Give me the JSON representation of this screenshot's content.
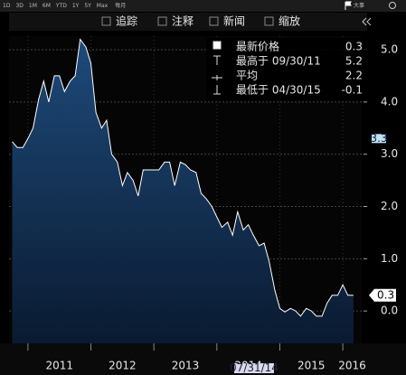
{
  "toolbar": {
    "ranges": [
      "1D",
      "3D",
      "1M",
      "6M",
      "YTD",
      "1Y",
      "5Y",
      "Max"
    ],
    "period": "每月",
    "events": "大事",
    "buttons": [
      "追踪",
      "注释",
      "新闻",
      "缩放"
    ]
  },
  "cursor_date": "07/31/14",
  "chart_data": {
    "type": "area",
    "x": [
      2010.75,
      2010.83,
      2010.92,
      2011.0,
      2011.08,
      2011.17,
      2011.25,
      2011.33,
      2011.42,
      2011.5,
      2011.58,
      2011.67,
      2011.75,
      2011.83,
      2011.92,
      2012.0,
      2012.08,
      2012.17,
      2012.25,
      2012.33,
      2012.42,
      2012.5,
      2012.58,
      2012.67,
      2012.75,
      2012.83,
      2012.92,
      2013.0,
      2013.08,
      2013.17,
      2013.25,
      2013.33,
      2013.42,
      2013.5,
      2013.58,
      2013.67,
      2013.75,
      2013.83,
      2013.92,
      2014.0,
      2014.08,
      2014.17,
      2014.25,
      2014.33,
      2014.42,
      2014.5,
      2014.58,
      2014.67,
      2014.75,
      2014.83,
      2014.92,
      2015.0,
      2015.08,
      2015.17,
      2015.25,
      2015.33,
      2015.42,
      2015.5,
      2015.58,
      2015.67,
      2015.75,
      2015.83,
      2015.92,
      2016.0,
      2016.08,
      2016.17
    ],
    "values": [
      3.24,
      3.13,
      3.13,
      3.3,
      3.5,
      4.05,
      4.4,
      4.0,
      4.5,
      4.5,
      4.2,
      4.4,
      4.5,
      5.2,
      5.05,
      4.74,
      3.8,
      3.5,
      3.65,
      3.0,
      2.85,
      2.4,
      2.65,
      2.5,
      2.2,
      2.7,
      2.7,
      2.7,
      2.7,
      2.85,
      2.85,
      2.4,
      2.85,
      2.8,
      2.7,
      2.65,
      2.25,
      2.15,
      2.0,
      1.8,
      1.6,
      1.7,
      1.45,
      1.9,
      1.55,
      1.65,
      1.45,
      1.25,
      1.3,
      0.95,
      0.4,
      0.05,
      -0.02,
      0.05,
      0,
      -0.1,
      0.05,
      0,
      -0.1,
      -0.1,
      0.15,
      0.3,
      0.3,
      0.5,
      0.3,
      0.3
    ],
    "color": "#ffffff",
    "xlim": [
      2010.7,
      2016.3
    ],
    "xticks": [
      2011,
      2012,
      2013,
      2014,
      2015,
      2016
    ],
    "ylim": [
      -0.62,
      5.26
    ],
    "yticks": [
      {
        "value": 0,
        "label": "0.0"
      },
      {
        "value": 1,
        "label": "1.0"
      },
      {
        "value": 2,
        "label": "2.0"
      },
      {
        "value": 3,
        "label": "3.0"
      },
      {
        "value": 4,
        "label": "4.0"
      },
      {
        "value": 5,
        "label": "5.0"
      }
    ],
    "grid": true,
    "ref_tag": 3.3,
    "last_tag": 0.3,
    "legend": [
      {
        "label": "最新价格",
        "value": 0.3
      },
      {
        "label": "最高于 09/30/11",
        "value": 5.2
      },
      {
        "label": "平均",
        "value": 2.2
      },
      {
        "label": "最低于 04/30/15",
        "value": -0.1
      }
    ]
  }
}
